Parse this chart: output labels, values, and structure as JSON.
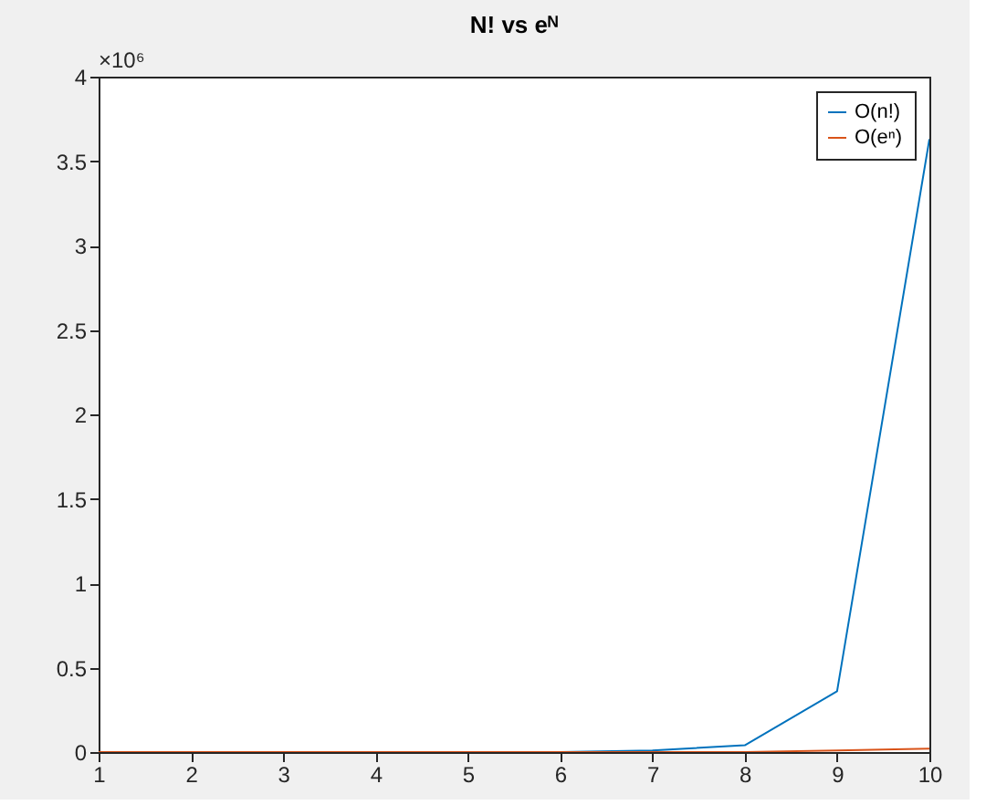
{
  "chart_data": {
    "type": "line",
    "title": "N! vs eᴺ",
    "x": [
      1,
      2,
      3,
      4,
      5,
      6,
      7,
      8,
      9,
      10
    ],
    "series": [
      {
        "name": "O(n!)",
        "color": "#0072bd",
        "values": [
          null,
          null,
          null,
          null,
          0,
          0,
          0.01,
          0.04,
          0.36,
          3.63
        ]
      },
      {
        "name": "O(eⁿ)",
        "color": "#d95319",
        "values": [
          0,
          0,
          0,
          0,
          0,
          0,
          0,
          0,
          0.01,
          0.02
        ]
      }
    ],
    "xlim": [
      1,
      10
    ],
    "xticks": [
      1,
      2,
      3,
      4,
      5,
      6,
      7,
      8,
      9,
      10
    ],
    "ylim": [
      0,
      4
    ],
    "yticks": [
      0,
      0.5,
      1,
      1.5,
      2,
      2.5,
      3,
      3.5,
      4
    ],
    "annotations": [
      "×10⁶"
    ],
    "grid": false,
    "legend": "top right",
    "marker": "none",
    "line_style": "solid"
  }
}
